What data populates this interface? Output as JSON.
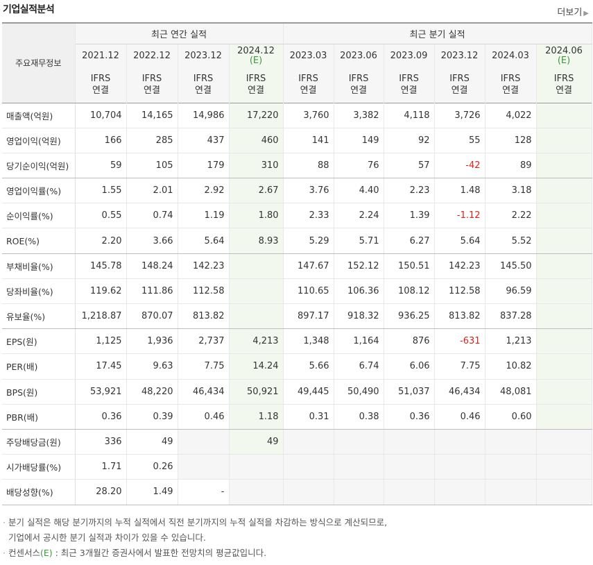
{
  "header": {
    "title": "기업실적분석",
    "more_label": "더보기"
  },
  "table": {
    "row_header_label": "주요재무정보",
    "group_annual": "최근 연간 실적",
    "group_quarter": "최근 분기 실적",
    "periods": [
      {
        "label": "2021.12",
        "est": ""
      },
      {
        "label": "2022.12",
        "est": ""
      },
      {
        "label": "2023.12",
        "est": ""
      },
      {
        "label": "2024.12",
        "est": "(E)"
      },
      {
        "label": "2023.03",
        "est": ""
      },
      {
        "label": "2023.06",
        "est": ""
      },
      {
        "label": "2023.09",
        "est": ""
      },
      {
        "label": "2023.12",
        "est": ""
      },
      {
        "label": "2024.03",
        "est": ""
      },
      {
        "label": "2024.06",
        "est": "(E)"
      }
    ],
    "basis_line1": "IFRS",
    "basis_line2": "연결",
    "rows": [
      {
        "label": "매출액(억원)",
        "values": [
          "10,704",
          "14,165",
          "14,986",
          "17,220",
          "3,760",
          "3,382",
          "4,118",
          "3,726",
          "4,022",
          ""
        ]
      },
      {
        "label": "영업이익(억원)",
        "values": [
          "166",
          "285",
          "437",
          "460",
          "141",
          "149",
          "92",
          "55",
          "128",
          ""
        ]
      },
      {
        "label": "당기순이익(억원)",
        "values": [
          "59",
          "105",
          "179",
          "310",
          "88",
          "76",
          "57",
          "-42",
          "89",
          ""
        ]
      },
      {
        "label": "영업이익률(%)",
        "values": [
          "1.55",
          "2.01",
          "2.92",
          "2.67",
          "3.76",
          "4.40",
          "2.23",
          "1.48",
          "3.18",
          ""
        ]
      },
      {
        "label": "순이익률(%)",
        "values": [
          "0.55",
          "0.74",
          "1.19",
          "1.80",
          "2.33",
          "2.24",
          "1.39",
          "-1.12",
          "2.22",
          ""
        ]
      },
      {
        "label": "ROE(%)",
        "values": [
          "2.20",
          "3.66",
          "5.64",
          "8.93",
          "5.29",
          "5.71",
          "6.27",
          "5.64",
          "5.52",
          ""
        ]
      },
      {
        "label": "부채비율(%)",
        "values": [
          "145.78",
          "148.24",
          "142.23",
          "",
          "147.67",
          "152.12",
          "150.51",
          "142.23",
          "145.50",
          ""
        ]
      },
      {
        "label": "당좌비율(%)",
        "values": [
          "119.62",
          "111.86",
          "112.58",
          "",
          "110.65",
          "106.36",
          "108.12",
          "112.58",
          "96.59",
          ""
        ]
      },
      {
        "label": "유보율(%)",
        "values": [
          "1,218.87",
          "870.07",
          "813.82",
          "",
          "897.17",
          "918.32",
          "936.25",
          "813.82",
          "837.28",
          ""
        ]
      },
      {
        "label": "EPS(원)",
        "values": [
          "1,125",
          "1,936",
          "2,737",
          "4,213",
          "1,348",
          "1,164",
          "876",
          "-631",
          "1,213",
          ""
        ]
      },
      {
        "label": "PER(배)",
        "values": [
          "17.45",
          "9.63",
          "7.75",
          "14.24",
          "5.66",
          "6.74",
          "6.06",
          "7.75",
          "10.82",
          ""
        ]
      },
      {
        "label": "BPS(원)",
        "values": [
          "53,921",
          "48,220",
          "46,434",
          "50,921",
          "49,445",
          "50,490",
          "51,037",
          "46,434",
          "48,081",
          ""
        ]
      },
      {
        "label": "PBR(배)",
        "values": [
          "0.36",
          "0.39",
          "0.46",
          "1.18",
          "0.31",
          "0.38",
          "0.36",
          "0.46",
          "0.60",
          ""
        ]
      },
      {
        "label": "주당배당금(원)",
        "values": [
          "336",
          "49",
          "",
          "49",
          "",
          "",
          "",
          "",
          "",
          ""
        ]
      },
      {
        "label": "시가배당률(%)",
        "values": [
          "1.71",
          "0.26",
          "",
          "",
          "",
          "",
          "",
          "",
          "",
          ""
        ]
      },
      {
        "label": "배당성향(%)",
        "values": [
          "28.20",
          "1.49",
          "-",
          "",
          "",
          "",
          "",
          "",
          "",
          ""
        ]
      }
    ]
  },
  "notes": {
    "bullet": "·",
    "note1_line1": "분기 실적은 해당 분기까지의 누적 실적에서 직전 분기까지의 누적 실적을 차감하는 방식으로 계산되므로,",
    "note1_line2": "기업에서 공시한 분기 실적과 차이가 있을 수 있습니다.",
    "note2_prefix": "컨센서스",
    "note2_mark": "(E)",
    "note2_suffix": " : 최근 3개월간 증권사에서 발표한 전망치의 평균값입니다."
  },
  "colors": {
    "estimate_green": "#3a9a3a",
    "ifrs_orange": "#f07b26",
    "negative_red": "#e0201a"
  }
}
